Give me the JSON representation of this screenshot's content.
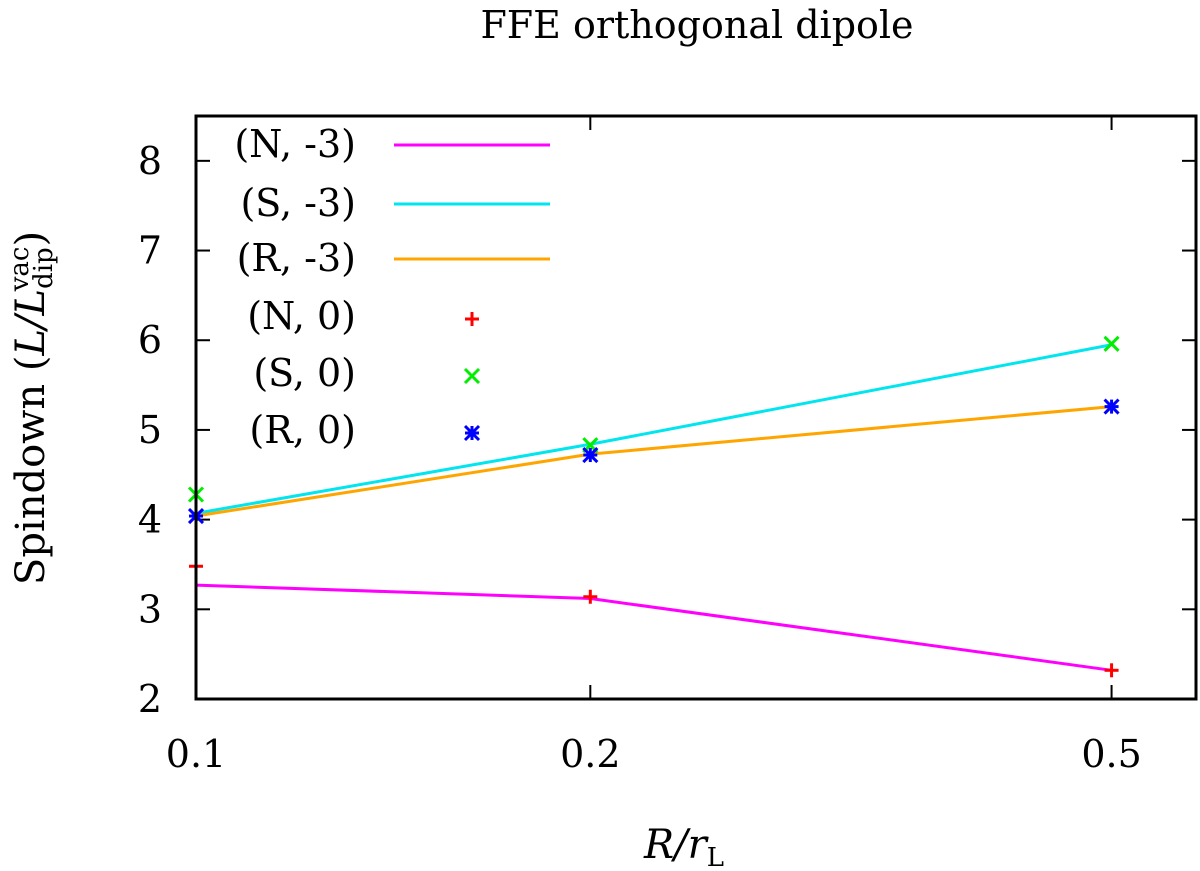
{
  "chart_data": {
    "type": "line",
    "title": "FFE orthogonal dipole",
    "xlabel": "R/r_L",
    "ylabel": "Spindown (L/L_dip^vac)",
    "x_scale": "log",
    "xlim": [
      0.1,
      0.58
    ],
    "ylim": [
      2,
      8.5
    ],
    "x_ticks": [
      {
        "value": 0.1,
        "label": "0.1"
      },
      {
        "value": 0.2,
        "label": "0.2"
      },
      {
        "value": 0.5,
        "label": "0.5"
      }
    ],
    "y_ticks": [
      {
        "value": 2,
        "label": "2"
      },
      {
        "value": 3,
        "label": "3"
      },
      {
        "value": 4,
        "label": "4"
      },
      {
        "value": 5,
        "label": "5"
      },
      {
        "value": 6,
        "label": "6"
      },
      {
        "value": 7,
        "label": "7"
      },
      {
        "value": 8,
        "label": "8"
      }
    ],
    "legend_position": "top-left",
    "series": [
      {
        "name": "(N, -3)",
        "style": "line",
        "color": "#ff00ff",
        "x": [
          0.1,
          0.2,
          0.5
        ],
        "y": [
          3.27,
          3.12,
          2.32
        ]
      },
      {
        "name": "(S, -3)",
        "style": "line",
        "color": "#00e5ee",
        "x": [
          0.1,
          0.2,
          0.5
        ],
        "y": [
          4.07,
          4.84,
          5.95
        ]
      },
      {
        "name": "(R, -3)",
        "style": "line",
        "color": "#ffa500",
        "x": [
          0.1,
          0.2,
          0.5
        ],
        "y": [
          4.04,
          4.73,
          5.26
        ]
      },
      {
        "name": "(N, 0)",
        "style": "plus",
        "color": "#ff0000",
        "x": [
          0.1,
          0.2,
          0.5
        ],
        "y": [
          3.48,
          3.14,
          2.32
        ]
      },
      {
        "name": "(S, 0)",
        "style": "cross",
        "color": "#00ee00",
        "x": [
          0.1,
          0.2,
          0.5
        ],
        "y": [
          4.28,
          4.83,
          5.96
        ]
      },
      {
        "name": "(R, 0)",
        "style": "star",
        "color": "#0000ff",
        "x": [
          0.1,
          0.2,
          0.5
        ],
        "y": [
          4.04,
          4.72,
          5.26
        ]
      }
    ]
  },
  "axis_text": {
    "xlabel_main": "R/r",
    "xlabel_sub": "L",
    "ylabel_prefix": "Spindown (",
    "ylabel_L": "L/L",
    "ylabel_sup": "vac",
    "ylabel_sub": "dip",
    "ylabel_suffix": ")"
  }
}
